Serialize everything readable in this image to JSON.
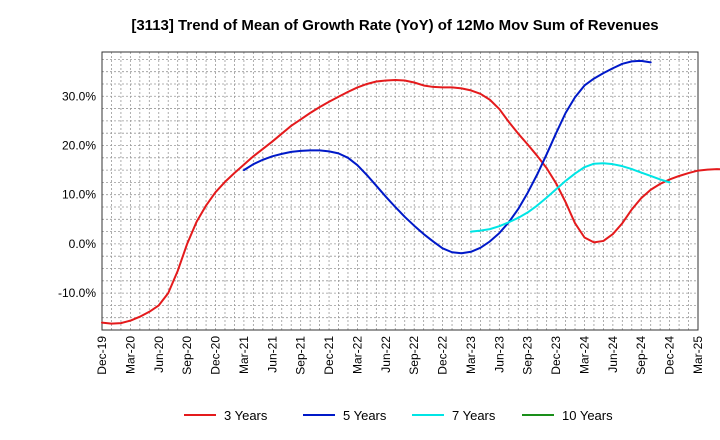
{
  "chart_data": {
    "type": "line",
    "title": "[3113]  Trend of Mean of Growth Rate (YoY) of 12Mo Mov Sum of Revenues",
    "xlabel": "",
    "ylabel": "",
    "ylim": [
      -17.5,
      39
    ],
    "y_ticks": [
      {
        "value": 30,
        "label": "30.0%"
      },
      {
        "value": 20,
        "label": "20.0%"
      },
      {
        "value": 10,
        "label": "10.0%"
      },
      {
        "value": 0,
        "label": "0.0%"
      },
      {
        "value": -10,
        "label": "-10.0%"
      }
    ],
    "x_tick_labels": [
      "Dec-19",
      "Mar-20",
      "Jun-20",
      "Sep-20",
      "Dec-20",
      "Mar-21",
      "Jun-21",
      "Sep-21",
      "Dec-21",
      "Mar-22",
      "Jun-22",
      "Sep-22",
      "Dec-22",
      "Mar-23",
      "Jun-23",
      "Sep-23",
      "Dec-23",
      "Mar-24",
      "Jun-24",
      "Sep-24",
      "Dec-24",
      "Mar-25"
    ],
    "grid": true,
    "legend_position": "bottom",
    "series": [
      {
        "name": "3 Years",
        "color": "#e41a1c",
        "start_month": 0,
        "values": [
          -16.0,
          -16.2,
          -16.1,
          -15.6,
          -14.8,
          -13.8,
          -12.5,
          -10.0,
          -5.5,
          0.0,
          4.5,
          7.8,
          10.5,
          12.6,
          14.4,
          16.1,
          17.8,
          19.3,
          20.8,
          22.4,
          24.0,
          25.3,
          26.6,
          27.8,
          28.9,
          29.9,
          30.9,
          31.8,
          32.5,
          33.0,
          33.2,
          33.3,
          33.2,
          32.8,
          32.2,
          31.9,
          31.8,
          31.8,
          31.6,
          31.2,
          30.5,
          29.3,
          27.4,
          24.8,
          22.4,
          20.2,
          17.9,
          15.4,
          12.3,
          8.5,
          4.2,
          1.3,
          0.3,
          0.6,
          2.0,
          4.2,
          7.0,
          9.3,
          11.0,
          12.2,
          13.1,
          13.8,
          14.4,
          14.9,
          15.1,
          15.2,
          15.1
        ]
      },
      {
        "name": "5 Years",
        "color": "#0019c8",
        "start_month": 15,
        "values": [
          15.0,
          16.2,
          17.1,
          17.8,
          18.3,
          18.7,
          18.9,
          19.0,
          19.0,
          18.8,
          18.4,
          17.5,
          16.0,
          14.0,
          11.8,
          9.6,
          7.5,
          5.5,
          3.7,
          2.0,
          0.5,
          -0.9,
          -1.7,
          -1.9,
          -1.6,
          -0.8,
          0.5,
          2.2,
          4.4,
          7.1,
          10.4,
          14.1,
          18.2,
          22.5,
          26.6,
          29.8,
          32.2,
          33.6,
          34.7,
          35.7,
          36.6,
          37.1,
          37.2,
          36.9
        ]
      },
      {
        "name": "7 Years",
        "color": "#00e5e5",
        "start_month": 39,
        "values": [
          2.5,
          2.7,
          3.0,
          3.6,
          4.4,
          5.3,
          6.4,
          7.8,
          9.4,
          11.1,
          12.8,
          14.3,
          15.6,
          16.3,
          16.4,
          16.2,
          15.8,
          15.2,
          14.5,
          13.8,
          13.1,
          12.5
        ]
      },
      {
        "name": "10 Years",
        "color": "#1a8f1a",
        "start_month": 0,
        "values": []
      }
    ]
  }
}
